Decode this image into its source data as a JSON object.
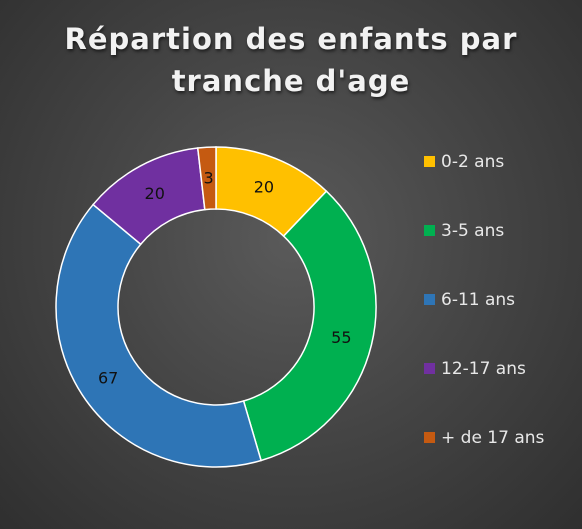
{
  "chart_data": {
    "type": "donut",
    "title": [
      "Répartion des enfants par",
      "tranche d'age"
    ],
    "categories": [
      "0-2 ans",
      "3-5 ans",
      "6-11 ans",
      "12-17 ans",
      "+ de 17 ans"
    ],
    "values": [
      20,
      55,
      67,
      20,
      3
    ],
    "colors": [
      "#ffc000",
      "#00b050",
      "#2e75b6",
      "#7030a0",
      "#c55a11"
    ],
    "data_labels": [
      "20",
      "55",
      "67",
      "20",
      "3"
    ],
    "legend_position": "right"
  }
}
